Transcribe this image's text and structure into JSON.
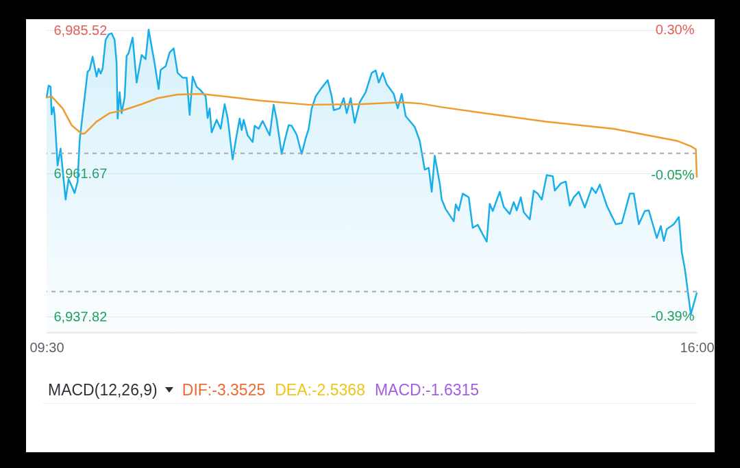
{
  "chart_data": [
    {
      "type": "area",
      "xlim": [
        9.5,
        16
      ],
      "xticks": [
        {
          "value": 9.5,
          "label": "09:30"
        },
        {
          "value": 16,
          "label": "16:00"
        }
      ],
      "ylim": [
        6935.2,
        6987.35
      ],
      "yticks": [
        {
          "value": 6937.82,
          "label": "6,937.82"
        },
        {
          "value": 6961.67,
          "label": "6,961.67"
        },
        {
          "value": 6985.52,
          "label": "6,985.52"
        }
      ],
      "y2lim": [
        -0.428,
        0.326
      ],
      "y2ticks": [
        {
          "value": -0.39,
          "label": "-0.39%"
        },
        {
          "value": -0.05,
          "label": "-0.05%"
        },
        {
          "value": 0.3,
          "label": "0.30%"
        }
      ],
      "grid": "y",
      "ref_lines": [
        {
          "axis": "y",
          "value": 6965.0,
          "color": "#a3a8b4",
          "line_style": "dashed"
        },
        {
          "axis": "y",
          "value": 6942.0,
          "color": "#a3a8b4",
          "line_style": "dashed"
        }
      ],
      "series": [
        {
          "type": "area",
          "color": "#18aeea",
          "x": [
            9.5,
            9.52,
            9.54,
            9.55,
            9.57,
            9.58,
            9.61,
            9.64,
            9.69,
            9.72,
            9.75,
            9.78,
            9.81,
            9.83,
            9.91,
            9.93,
            9.96,
            10.0,
            10.02,
            10.04,
            10.06,
            10.09,
            10.12,
            10.15,
            10.18,
            10.2,
            10.21,
            10.23,
            10.25,
            10.28,
            10.3,
            10.32,
            10.36,
            10.4,
            10.45,
            10.49,
            10.52,
            10.58,
            10.62,
            10.64,
            10.69,
            10.73,
            10.77,
            10.81,
            10.86,
            10.9,
            10.93,
            10.96,
            11.0,
            11.04,
            11.09,
            11.11,
            11.13,
            11.15,
            11.2,
            11.24,
            11.28,
            11.31,
            11.36,
            11.39,
            11.43,
            11.45,
            11.47,
            11.51,
            11.56,
            11.58,
            11.62,
            11.66,
            11.73,
            11.77,
            11.8,
            11.85,
            11.88,
            11.92,
            11.95,
            12.0,
            12.05,
            12.09,
            12.12,
            12.15,
            12.19,
            12.24,
            12.31,
            12.35,
            12.37,
            12.43,
            12.47,
            12.5,
            12.54,
            12.58,
            12.63,
            12.69,
            12.75,
            12.79,
            12.82,
            12.86,
            12.9,
            12.97,
            13.01,
            13.05,
            13.09,
            13.18,
            13.23,
            13.28,
            13.32,
            13.35,
            13.38,
            13.43,
            13.45,
            13.49,
            13.57,
            13.59,
            13.62,
            13.66,
            13.72,
            13.76,
            13.81,
            13.86,
            13.9,
            13.93,
            13.96,
            14.03,
            14.07,
            14.13,
            14.17,
            14.2,
            14.24,
            14.27,
            14.33,
            14.37,
            14.41,
            14.45,
            14.5,
            14.56,
            14.58,
            14.64,
            14.69,
            14.73,
            14.77,
            14.82,
            14.88,
            14.95,
            14.99,
            15.03,
            15.1,
            15.19,
            15.25,
            15.33,
            15.37,
            15.42,
            15.48,
            15.52,
            15.56,
            15.6,
            15.64,
            15.67,
            15.7,
            15.77,
            15.82,
            15.85,
            15.88,
            15.94,
            16.0
          ],
          "values": [
            6974.3,
            6976.3,
            6976.1,
            6971.5,
            6972.7,
            6971.4,
            6963.0,
            6965.8,
            6957.3,
            6960.7,
            6959.6,
            6958.4,
            6960.3,
            6967.1,
            6978.6,
            6978.9,
            6981.1,
            6977.8,
            6979.1,
            6978.3,
            6979.1,
            6983.9,
            6984.8,
            6985.0,
            6983.9,
            6980.0,
            6970.8,
            6975.2,
            6971.7,
            6974.3,
            6981.2,
            6981.7,
            6984.3,
            6976.8,
            6981.4,
            6980.7,
            6985.6,
            6980.0,
            6975.7,
            6978.9,
            6979.5,
            6981.8,
            6982.5,
            6978.4,
            6977.6,
            6977.6,
            6971.4,
            6977.8,
            6976.1,
            6975.5,
            6974.5,
            6970.9,
            6972.5,
            6968.5,
            6970.6,
            6969.1,
            6973.2,
            6970.9,
            6964.0,
            6967.1,
            6970.8,
            6968.9,
            6970.6,
            6968.0,
            6966.9,
            6969.6,
            6969.1,
            6970.4,
            6968.0,
            6973.1,
            6970.6,
            6964.9,
            6967.1,
            6969.7,
            6969.6,
            6968.1,
            6964.9,
            6967.5,
            6969.1,
            6972.5,
            6974.5,
            6975.7,
            6977.2,
            6974.5,
            6972.2,
            6972.5,
            6974.2,
            6971.7,
            6974.2,
            6970.1,
            6973.5,
            6975.2,
            6978.4,
            6978.8,
            6976.8,
            6978.4,
            6976.5,
            6974.9,
            6972.5,
            6974.9,
            6971.2,
            6969.4,
            6967.1,
            6962.3,
            6962.6,
            6958.6,
            6964.6,
            6960.0,
            6957.3,
            6955.7,
            6953.7,
            6956.5,
            6955.5,
            6958.3,
            6957.7,
            6952.6,
            6953.1,
            6951.5,
            6950.3,
            6956.6,
            6955.4,
            6958.6,
            6956.1,
            6954.9,
            6956.9,
            6955.5,
            6957.7,
            6955.2,
            6954.0,
            6958.8,
            6958.3,
            6957.3,
            6961.4,
            6961.2,
            6958.8,
            6960.0,
            6960.3,
            6956.3,
            6957.7,
            6958.6,
            6956.0,
            6959.3,
            6958.4,
            6959.8,
            6956.3,
            6953.2,
            6953.4,
            6958.3,
            6958.3,
            6953.2,
            6955.4,
            6955.5,
            6953.2,
            6950.9,
            6952.9,
            6950.4,
            6952.4,
            6953.2,
            6954.4,
            6948.5,
            6945.8,
            6938.2,
            6941.8
          ]
        },
        {
          "type": "line",
          "color": "#ef9b2d",
          "x": [
            9.5,
            9.55,
            9.66,
            9.75,
            9.85,
            9.88,
            10.0,
            10.13,
            10.27,
            10.45,
            10.61,
            10.81,
            11.04,
            11.27,
            11.63,
            12.12,
            12.65,
            13.04,
            13.24,
            13.45,
            13.88,
            14.49,
            15.17,
            15.8,
            15.94,
            15.99,
            16.0
          ],
          "values": [
            6974.3,
            6974.5,
            6972.5,
            6969.7,
            6968.3,
            6968.3,
            6970.3,
            6971.7,
            6972.2,
            6973.2,
            6974.2,
            6974.8,
            6974.9,
            6974.5,
            6973.8,
            6973.1,
            6973.2,
            6973.5,
            6973.3,
            6972.7,
            6971.7,
            6970.3,
            6969.1,
            6967.1,
            6966.2,
            6965.7,
            6961.1
          ]
        }
      ]
    },
    {
      "type": "other",
      "title": "MACD(12,26,9)",
      "annotations": [
        "DIF:-3.3525",
        "DEA:-2.5368",
        "MACD:-1.6315"
      ]
    }
  ]
}
